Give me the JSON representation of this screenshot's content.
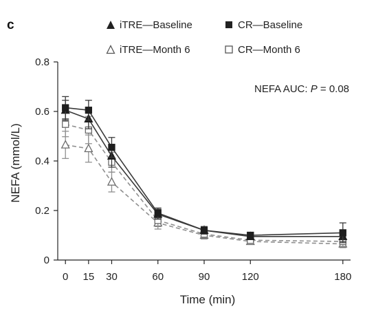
{
  "panel_label": "c",
  "legend": [
    {
      "label": "iTRE—Baseline",
      "marker": "triangle",
      "filled": true,
      "dashed": false
    },
    {
      "label": "CR—Baseline",
      "marker": "square",
      "filled": true,
      "dashed": false
    },
    {
      "label": "iTRE—Month 6",
      "marker": "triangle",
      "filled": false,
      "dashed": true
    },
    {
      "label": "CR—Month 6",
      "marker": "square",
      "filled": false,
      "dashed": true
    }
  ],
  "annotation": {
    "prefix": "NEFA AUC: ",
    "p_label": "P",
    "suffix": " = 0.08"
  },
  "colors": {
    "baseline": "#3a3a3a",
    "month6": "#8f8f8f"
  },
  "chart_data": {
    "type": "line",
    "xlabel": "Time (min)",
    "ylabel": "NEFA (mmol/L)",
    "x": [
      0,
      15,
      30,
      60,
      90,
      120,
      180
    ],
    "xticks": [
      "0",
      "15",
      "30",
      "60",
      "90",
      "120",
      "180"
    ],
    "yticks": [
      "0",
      "0.2",
      "0.4",
      "0.6",
      "0.8"
    ],
    "ylim": [
      0,
      0.8
    ],
    "xlim": [
      -5,
      185
    ],
    "series": [
      {
        "name": "iTRE—Baseline",
        "marker": "triangle",
        "filled": true,
        "dashed": false,
        "values": [
          0.605,
          0.57,
          0.42,
          0.185,
          0.12,
          0.095,
          0.095
        ],
        "errors": [
          0.04,
          0.04,
          0.045,
          0.02,
          0.015,
          0.012,
          0.02
        ]
      },
      {
        "name": "CR—Baseline",
        "marker": "square",
        "filled": true,
        "dashed": false,
        "values": [
          0.615,
          0.605,
          0.455,
          0.19,
          0.12,
          0.1,
          0.11
        ],
        "errors": [
          0.045,
          0.04,
          0.04,
          0.02,
          0.015,
          0.012,
          0.04
        ]
      },
      {
        "name": "iTRE—Month 6",
        "marker": "triangle",
        "filled": false,
        "dashed": true,
        "values": [
          0.465,
          0.45,
          0.315,
          0.15,
          0.1,
          0.075,
          0.065
        ],
        "errors": [
          0.055,
          0.055,
          0.04,
          0.025,
          0.015,
          0.01,
          0.015
        ]
      },
      {
        "name": "CR—Month 6",
        "marker": "square",
        "filled": false,
        "dashed": true,
        "values": [
          0.548,
          0.525,
          0.395,
          0.16,
          0.105,
          0.08,
          0.075
        ],
        "errors": [
          0.05,
          0.055,
          0.04,
          0.025,
          0.015,
          0.012,
          0.02
        ]
      }
    ]
  }
}
